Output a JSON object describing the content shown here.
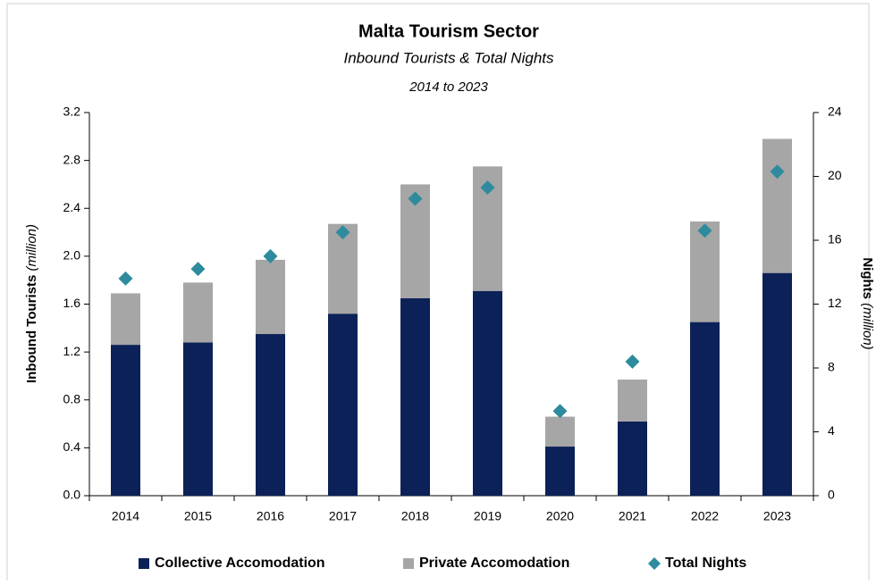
{
  "chart_data": {
    "type": "stacked-bar-line",
    "title": "Malta Tourism Sector",
    "subtitle": "Inbound Tourists & Total Nights",
    "period": "2014 to 2023",
    "y_label": "Inbound Tourists",
    "y_label_unit": "(million)",
    "y2_label": "Nights",
    "y2_label_unit": "(million)",
    "categories": [
      "2014",
      "2015",
      "2016",
      "2017",
      "2018",
      "2019",
      "2020",
      "2021",
      "2022",
      "2023"
    ],
    "series": [
      {
        "name": "Collective Accomodation",
        "color": "#0c2157",
        "kind": "bar",
        "values": [
          1.26,
          1.28,
          1.35,
          1.52,
          1.65,
          1.71,
          0.41,
          0.62,
          1.45,
          1.86
        ]
      },
      {
        "name": "Private Accomodation",
        "color": "#a6a6a6",
        "kind": "bar",
        "values": [
          0.43,
          0.5,
          0.62,
          0.75,
          0.95,
          1.04,
          0.25,
          0.35,
          0.84,
          1.12
        ]
      },
      {
        "name": "Total Nights",
        "color": "#2e8b9e",
        "kind": "marker",
        "axis": "y2",
        "values": [
          13.6,
          14.2,
          15.0,
          16.5,
          18.6,
          19.3,
          5.3,
          8.4,
          16.6,
          20.3
        ]
      }
    ],
    "ylim": [
      0,
      3.2
    ],
    "yticks": [
      {
        "value": 0,
        "label": "0.0"
      },
      0.4,
      0.8,
      1.2,
      1.6,
      {
        "value": 2,
        "label": "2.0"
      },
      2.4,
      2.8,
      3.2
    ],
    "y2lim": [
      0,
      24
    ],
    "y2ticks": [
      0,
      4,
      8,
      12,
      16,
      20,
      24
    ],
    "legend": "bottom"
  }
}
